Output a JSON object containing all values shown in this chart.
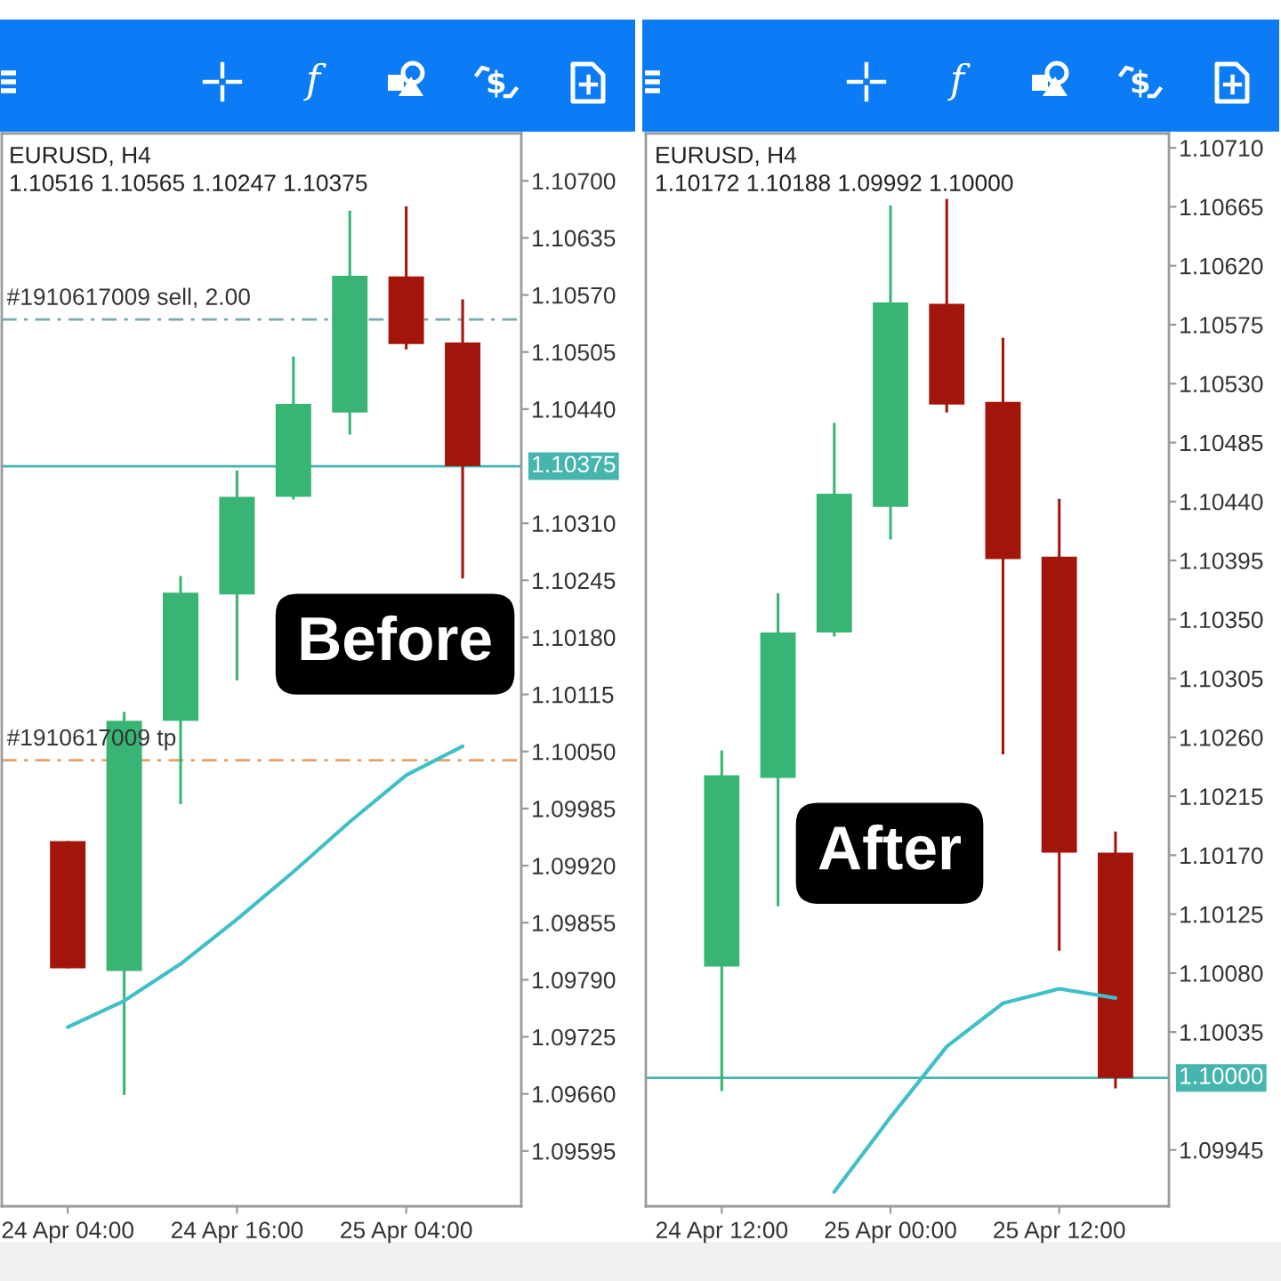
{
  "chart_data": [
    {
      "type": "candlestick",
      "title": "EURUSD, H4",
      "subtitle": "1.10516 1.10565 1.10247 1.10375",
      "categories": [
        "24 Apr 04:00",
        null,
        null,
        "24 Apr 16:00",
        null,
        null,
        "25 Apr 04:00",
        null
      ],
      "ohlc": [
        [
          1.09948,
          1.09948,
          1.09803,
          1.09803
        ],
        [
          1.098,
          1.10095,
          1.09659,
          1.10085
        ],
        [
          1.10085,
          1.1025,
          1.0999,
          1.10231
        ],
        [
          1.10229,
          1.1037,
          1.10131,
          1.1034
        ],
        [
          1.1034,
          1.105,
          1.10337,
          1.10446
        ],
        [
          1.10436,
          1.10666,
          1.10411,
          1.10592
        ],
        [
          1.10591,
          1.10671,
          1.10508,
          1.10514
        ],
        [
          1.10516,
          1.10565,
          1.10247,
          1.10375
        ]
      ],
      "colors": [
        "#a3140b",
        "#38b474",
        "#38b474",
        "#38b474",
        "#38b474",
        "#38b474",
        "#a3140b",
        "#a3140b"
      ],
      "series": [
        {
          "type": "line",
          "color": "#3fc0c6",
          "values": [
            1.09736,
            1.09766,
            1.09808,
            1.09859,
            1.09913,
            1.0997,
            1.10023,
            1.10056
          ]
        }
      ],
      "ylim": [
        1.09532,
        1.10754
      ],
      "yticks": [
        {
          "value": 1.107,
          "label": "1.10700"
        },
        1.10635,
        {
          "value": 1.1057,
          "label": "1.10570"
        },
        1.10505,
        {
          "value": 1.1044,
          "label": "1.10440"
        },
        {
          "value": 1.1031,
          "label": "1.10310"
        },
        1.10245,
        {
          "value": 1.1018,
          "label": "1.10180"
        },
        1.10115,
        {
          "value": 1.1005,
          "label": "1.10050"
        },
        1.09985,
        {
          "value": 1.0992,
          "label": "1.09920"
        },
        1.09855,
        {
          "value": 1.0979,
          "label": "1.09790"
        },
        1.09725,
        {
          "value": 1.0966,
          "label": "1.09660"
        },
        1.09595
      ],
      "ref_lines": [
        {
          "axis": "y",
          "value": 1.10375,
          "label": "1.10375",
          "color": "#45b5ae",
          "line_style": "solid"
        },
        {
          "axis": "y",
          "value": 1.10542,
          "label": "#1910617009 sell, 2.00",
          "color": "#7ea6ad",
          "line_style": "dashdot"
        },
        {
          "axis": "y",
          "value": 1.1004,
          "label": "#1910617009 tp",
          "color": "#e3a06b",
          "line_style": "dashdot"
        }
      ],
      "annotations": [
        "Before"
      ]
    },
    {
      "type": "candlestick",
      "title": "EURUSD, H4",
      "subtitle": "1.10172 1.10188 1.09992 1.10000",
      "categories": [
        "24 Apr 12:00",
        null,
        null,
        "25 Apr 00:00",
        null,
        null,
        "25 Apr 12:00",
        null
      ],
      "ohlc": [
        [
          1.10085,
          1.1025,
          1.0999,
          1.10231
        ],
        [
          1.10229,
          1.1037,
          1.10131,
          1.1034
        ],
        [
          1.1034,
          1.105,
          1.10337,
          1.10446
        ],
        [
          1.10436,
          1.10666,
          1.10411,
          1.10592
        ],
        [
          1.10591,
          1.10671,
          1.10508,
          1.10514
        ],
        [
          1.10516,
          1.10565,
          1.10247,
          1.10396
        ],
        [
          1.10398,
          1.10442,
          1.10097,
          1.10172
        ],
        [
          1.10172,
          1.10188,
          1.09992,
          1.1
        ]
      ],
      "colors": [
        "#38b474",
        "#38b474",
        "#38b474",
        "#38b474",
        "#a3140b",
        "#a3140b",
        "#a3140b",
        "#a3140b"
      ],
      "series": [
        {
          "type": "line",
          "color": "#3fc0c6",
          "values": [
            null,
            null,
            1.09913,
            1.0997,
            1.10024,
            1.10057,
            1.10068,
            1.10061
          ]
        }
      ],
      "ylim": [
        1.09902,
        1.10721
      ],
      "yticks": [
        {
          "value": 1.1071,
          "label": "1.10710"
        },
        1.10665,
        {
          "value": 1.1062,
          "label": "1.10620"
        },
        1.10575,
        {
          "value": 1.1053,
          "label": "1.10530"
        },
        1.10485,
        {
          "value": 1.1044,
          "label": "1.10440"
        },
        1.10395,
        {
          "value": 1.1035,
          "label": "1.10350"
        },
        1.10305,
        {
          "value": 1.1026,
          "label": "1.10260"
        },
        1.10215,
        {
          "value": 1.1017,
          "label": "1.10170"
        },
        1.10125,
        {
          "value": 1.1008,
          "label": "1.10080"
        },
        1.10035,
        1.09945
      ],
      "ref_lines": [
        {
          "axis": "y",
          "value": 1.1,
          "label": "1.10000",
          "color": "#45b5ae",
          "line_style": "solid"
        }
      ],
      "annotations": [
        "After"
      ]
    }
  ]
}
